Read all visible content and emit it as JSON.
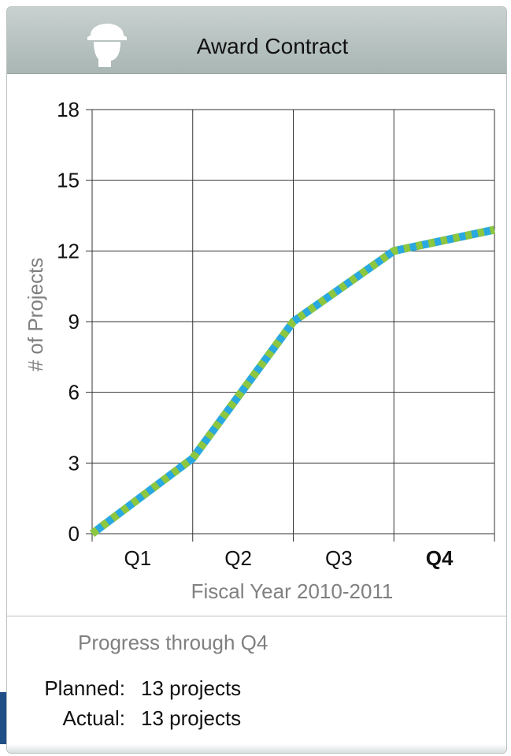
{
  "header": {
    "title": "Award Contract",
    "icon": "worker-hardhat-icon"
  },
  "chart_data": {
    "type": "line",
    "title": "",
    "xlabel": "Fiscal Year 2010-2011",
    "ylabel": "# of Projects",
    "x_ticks": [
      "Q1",
      "Q2",
      "Q3",
      "Q4"
    ],
    "bold_tick": "Q4",
    "y_ticks": [
      "0",
      "3",
      "6",
      "9",
      "12",
      "15",
      "18"
    ],
    "ylim": [
      0,
      18
    ],
    "grid": true,
    "x": [
      "start",
      "Q1",
      "Q2",
      "Q3",
      "Q4"
    ],
    "series": [
      {
        "values": [
          0,
          3.2,
          9,
          12,
          12.9
        ],
        "color": "#29a9df"
      },
      {
        "values": [
          0,
          3.2,
          9,
          12,
          12.9
        ],
        "color": "#8dc63f"
      }
    ]
  },
  "footer": {
    "progress_label": "Progress through Q4",
    "planned_label": "Planned:",
    "planned_value": "13 projects",
    "actual_label": "Actual:",
    "actual_value": "13 projects"
  }
}
